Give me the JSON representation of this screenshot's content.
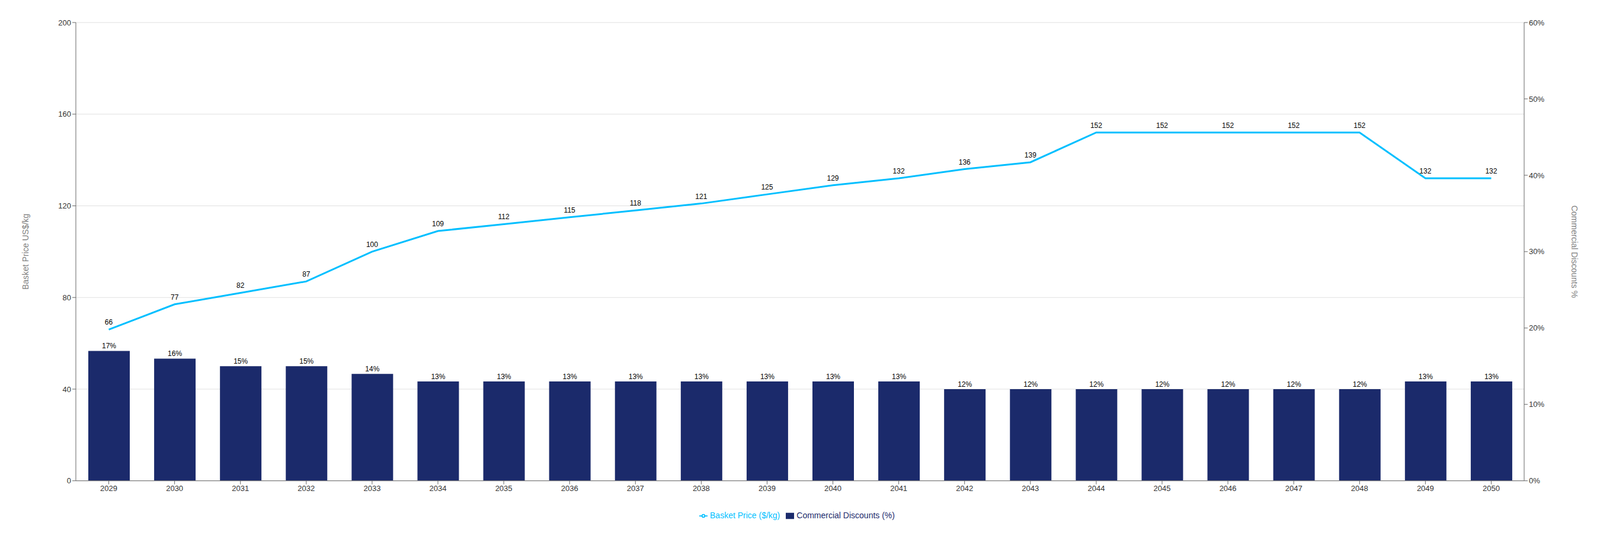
{
  "chart_data": {
    "type": "bar",
    "categories": [
      "2029",
      "2030",
      "2031",
      "2032",
      "2033",
      "2034",
      "2035",
      "2036",
      "2037",
      "2038",
      "2039",
      "2040",
      "2041",
      "2042",
      "2043",
      "2044",
      "2045",
      "2046",
      "2047",
      "2048",
      "2049",
      "2050"
    ],
    "series": [
      {
        "name": "Commercial Discounts (%)",
        "type": "bar",
        "axis": "y2",
        "color": "#1B2A6B",
        "data_labels": true,
        "values": [
          0.17,
          0.16,
          0.15,
          0.15,
          0.14,
          0.13,
          0.13,
          0.13,
          0.13,
          0.13,
          0.13,
          0.13,
          0.13,
          0.12,
          0.12,
          0.12,
          0.12,
          0.12,
          0.12,
          0.12,
          0.13,
          0.13
        ],
        "value_labels": [
          "17%",
          "16%",
          "15%",
          "15%",
          "14%",
          "13%",
          "13%",
          "13%",
          "13%",
          "13%",
          "13%",
          "13%",
          "13%",
          "12%",
          "12%",
          "12%",
          "12%",
          "12%",
          "12%",
          "12%",
          "13%",
          "13%"
        ]
      },
      {
        "name": "Basket Price ($/kg)",
        "type": "line",
        "color": "#00BFFF",
        "data_labels": true,
        "values": [
          66,
          77,
          82,
          87,
          100,
          109,
          112,
          115,
          118,
          121,
          125,
          129,
          132,
          136,
          139,
          152,
          152,
          152,
          152,
          152,
          132,
          132
        ]
      }
    ],
    "ylabel": "Basket Price US$/kg",
    "y2label": "Commercial Discounts %",
    "ylim": [
      0,
      200
    ],
    "yticks": [
      0,
      40,
      80,
      120,
      160,
      200
    ],
    "y2lim": [
      0,
      0.6
    ],
    "y2ticks": [
      {
        "value": 0.0,
        "label": "0%"
      },
      {
        "value": 0.1,
        "label": "10%"
      },
      {
        "value": 0.2,
        "label": "20%"
      },
      {
        "value": 0.3,
        "label": "30%"
      },
      {
        "value": 0.4,
        "label": "40%"
      },
      {
        "value": 0.5,
        "label": "50%"
      },
      {
        "value": 0.6,
        "label": "60%"
      }
    ],
    "grid": true,
    "legend": "bottom"
  }
}
